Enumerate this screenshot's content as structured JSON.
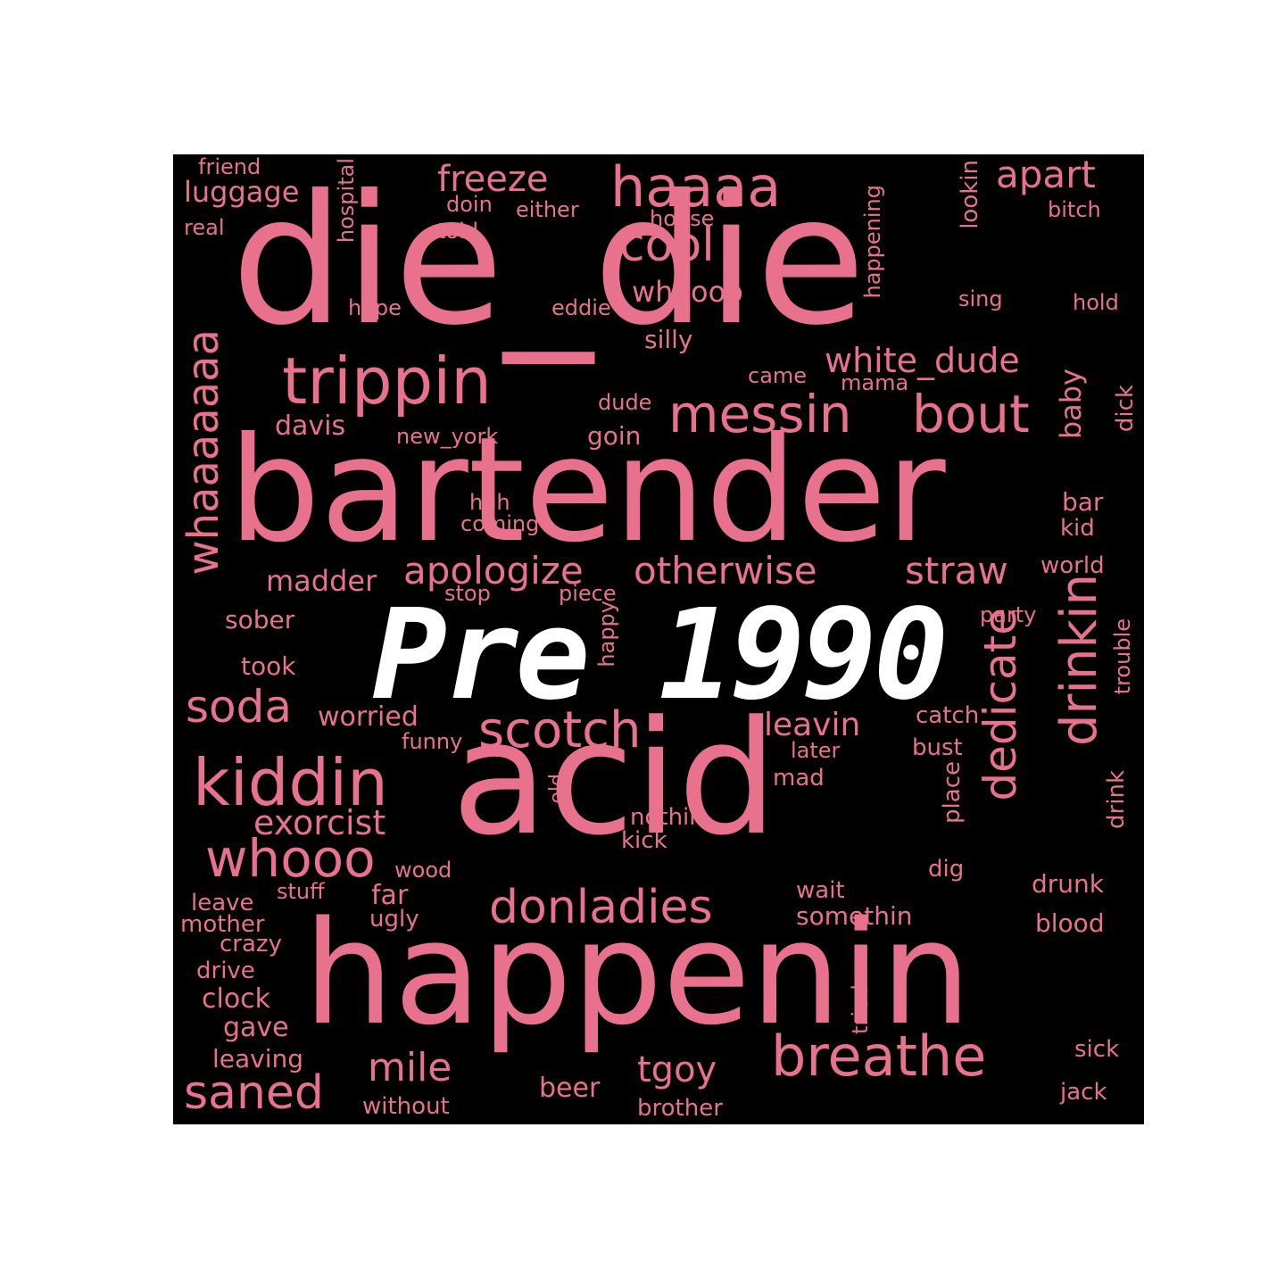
{
  "title": "Pre 1990",
  "colors": {
    "word": "#e8718d",
    "background": "#000000",
    "title": "#ffffff"
  },
  "words": [
    "die_die",
    "bartender",
    "acid",
    "happenin",
    "trippin",
    "messin",
    "bout",
    "haaaa",
    "cool",
    "whoooo",
    "freeze",
    "apart",
    "luggage",
    "friend",
    "real",
    "doin",
    "either",
    "told",
    "house",
    "bitch",
    "hospital",
    "happening",
    "lookin",
    "sing",
    "hold",
    "hope",
    "eddie",
    "silly",
    "white_dude",
    "came",
    "mama",
    "dude",
    "davis",
    "new_york",
    "goin",
    "baby",
    "dick",
    "whaaaaaaa",
    "apologize",
    "otherwise",
    "straw",
    "huh",
    "coming",
    "bar",
    "kid",
    "world",
    "madder",
    "stop",
    "piece",
    "sober",
    "happy",
    "party",
    "took",
    "trouble",
    "soda",
    "worried",
    "scotch",
    "leavin",
    "catch",
    "funny",
    "later",
    "bust",
    "dedicate",
    "drinkin",
    "kiddin",
    "old",
    "mad",
    "place",
    "drink",
    "exorcist",
    "nothin",
    "kick",
    "whooo",
    "wood",
    "dig",
    "leave",
    "stuff",
    "far",
    "wait",
    "drunk",
    "mother",
    "ugly",
    "donladies",
    "somethin",
    "blood",
    "crazy",
    "drive",
    "clock",
    "gave",
    "tried",
    "leaving",
    "sick",
    "mile",
    "tgoy",
    "breathe",
    "saned",
    "beer",
    "jack",
    "without",
    "brother"
  ]
}
